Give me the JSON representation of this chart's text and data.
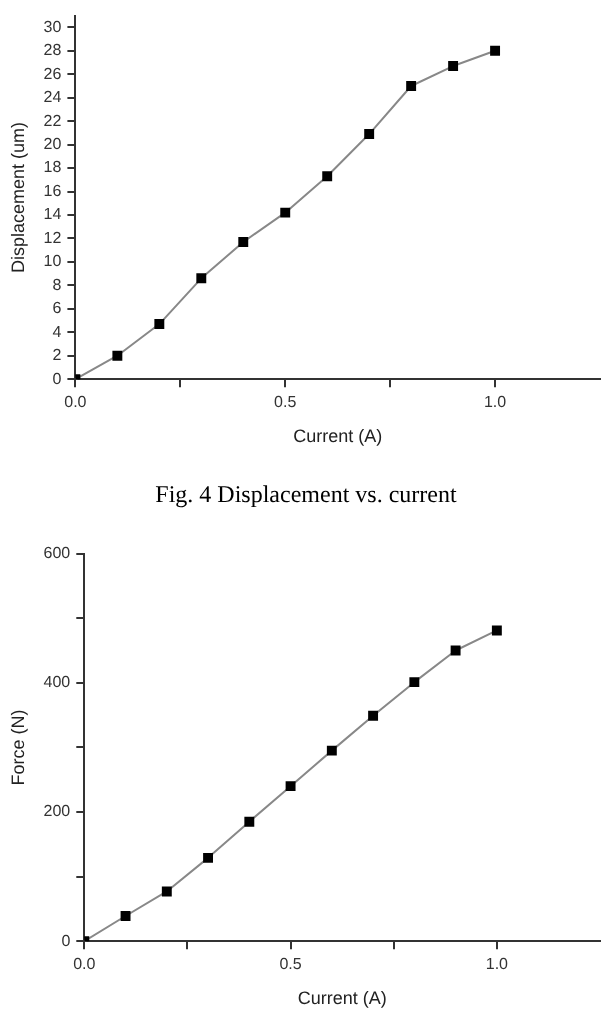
{
  "chart_data": [
    {
      "type": "line",
      "xlabel": "Current (A)",
      "ylabel": "Displacement (um)",
      "annotations": [
        "Fig. 4 Displacement vs. current"
      ],
      "x": [
        0,
        0.1,
        0.2,
        0.3,
        0.4,
        0.5,
        0.6,
        0.7,
        0.8,
        0.9,
        1.0
      ],
      "series": [
        {
          "color": "#000000",
          "values": [
            0,
            2.0,
            4.7,
            8.6,
            11.7,
            14.2,
            17.3,
            20.9,
            25.0,
            26.7,
            28.0
          ]
        }
      ],
      "xlim": [
        0,
        1.25
      ],
      "xticks": [
        {
          "value": 0,
          "label": "0.0"
        },
        {
          "value": 0.25,
          "label": null
        },
        {
          "value": 0.5,
          "label": "0.5"
        },
        {
          "value": 0.75,
          "label": null
        },
        {
          "value": 1,
          "label": "1.0"
        }
      ],
      "ylim": [
        0,
        31
      ],
      "yticks": [
        0,
        2,
        4,
        6,
        8,
        10,
        12,
        14,
        16,
        18,
        20,
        22,
        24,
        26,
        28,
        30
      ],
      "grid": false,
      "legend": false,
      "marker": "square",
      "line_style": "solid"
    },
    {
      "type": "line",
      "xlabel": "Current (A)",
      "ylabel": "Force (N)",
      "x": [
        0,
        0.1,
        0.2,
        0.3,
        0.4,
        0.5,
        0.6,
        0.7,
        0.8,
        0.9,
        1.0
      ],
      "series": [
        {
          "color": "#000000",
          "values": [
            0,
            39,
            77,
            129,
            185,
            240,
            295,
            349,
            401,
            450,
            481
          ]
        }
      ],
      "xlim": [
        0,
        1.25
      ],
      "xticks": [
        {
          "value": 0,
          "label": "0.0"
        },
        {
          "value": 0.25,
          "label": null
        },
        {
          "value": 0.5,
          "label": "0.5"
        },
        {
          "value": 0.75,
          "label": null
        },
        {
          "value": 1,
          "label": "1.0"
        }
      ],
      "ylim": [
        0,
        600
      ],
      "yticks": [
        0,
        {
          "value": 100,
          "label": null
        },
        200,
        {
          "value": 300,
          "label": null
        },
        400,
        {
          "value": 500,
          "label": null
        },
        600
      ],
      "grid": false,
      "legend": false,
      "marker": "square",
      "line_style": "solid"
    }
  ]
}
